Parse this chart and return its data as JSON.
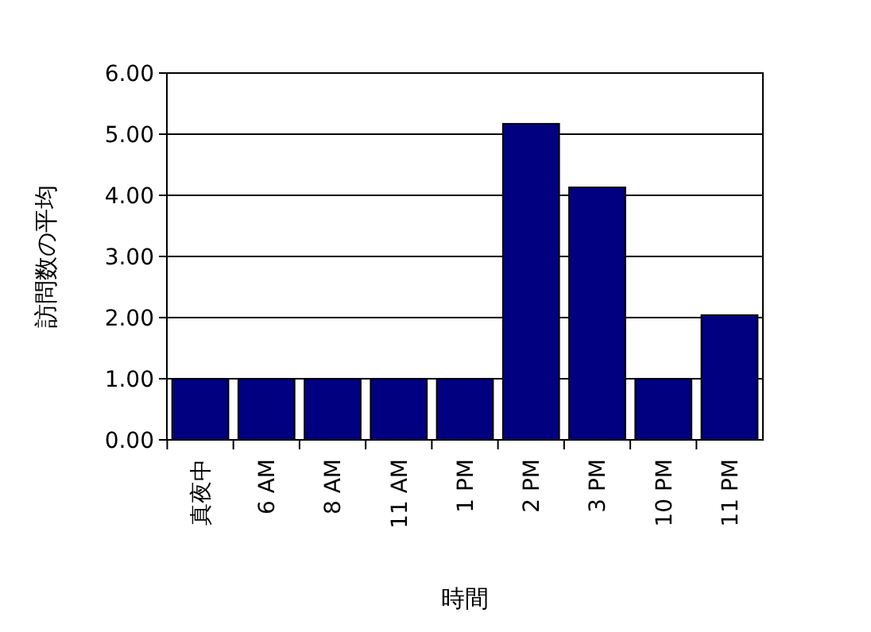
{
  "chart_data": {
    "type": "bar",
    "xlabel": "時間",
    "ylabel": "訪問数の平均",
    "categories": [
      "真夜中",
      "6 AM",
      "8 AM",
      "11 AM",
      "1 PM",
      "2 PM",
      "3 PM",
      "10 PM",
      "11 PM"
    ],
    "values": [
      1,
      1,
      1,
      1,
      1,
      5.17,
      4.13,
      1,
      2.04
    ],
    "color": "#000080",
    "ylim": [
      0,
      6
    ],
    "yticks": [
      {
        "value": 0,
        "label": "0.00"
      },
      {
        "value": 1,
        "label": "1.00"
      },
      {
        "value": 2,
        "label": "2.00"
      },
      {
        "value": 3,
        "label": "3.00"
      },
      {
        "value": 4,
        "label": "4.00"
      },
      {
        "value": 5,
        "label": "5.00"
      },
      {
        "value": 6,
        "label": "6.00"
      }
    ],
    "grid": "y"
  }
}
